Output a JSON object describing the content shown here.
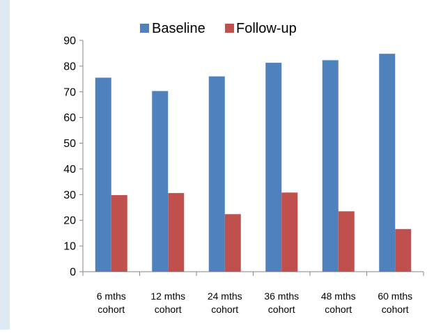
{
  "chart_data": {
    "type": "bar",
    "title": "",
    "xlabel": "",
    "ylabel": "",
    "ylim": [
      0,
      90
    ],
    "yticks": [
      0,
      10,
      20,
      30,
      40,
      50,
      60,
      70,
      80,
      90
    ],
    "grid": false,
    "legend_position": "top-center",
    "categories": [
      [
        "6 mths",
        "cohort"
      ],
      [
        "12 mths",
        "cohort"
      ],
      [
        "24 mths",
        "cohort"
      ],
      [
        "36 mths",
        "cohort"
      ],
      [
        "48 mths",
        "cohort"
      ],
      [
        "60 mths",
        "cohort"
      ]
    ],
    "series": [
      {
        "name": "Baseline",
        "color": "#4f81bd",
        "values": [
          75.5,
          70.3,
          76.0,
          81.3,
          82.3,
          84.8
        ]
      },
      {
        "name": "Follow-up",
        "color": "#c0504d",
        "values": [
          29.8,
          30.6,
          22.4,
          30.8,
          23.5,
          16.6
        ]
      }
    ]
  }
}
